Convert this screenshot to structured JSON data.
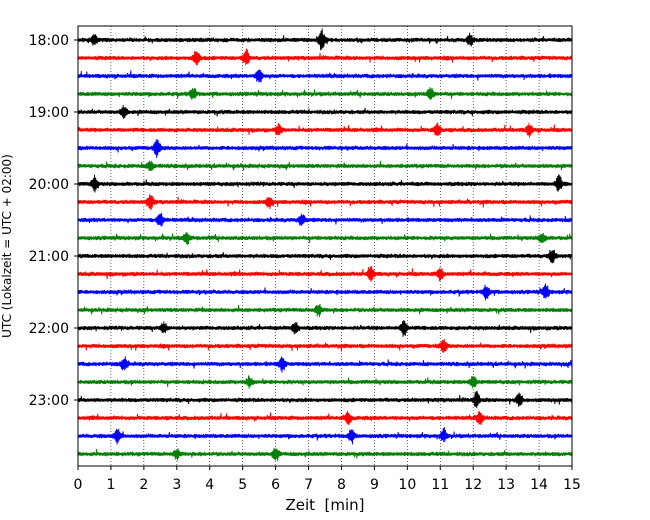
{
  "chart_data": {
    "type": "line",
    "title": "",
    "xlabel": "Zeit  [min]",
    "ylabel": "UTC (Lokalzeit = UTC + 02:00)",
    "xlim": [
      0,
      15
    ],
    "x_ticks": [
      0,
      1,
      2,
      3,
      4,
      5,
      6,
      7,
      8,
      9,
      10,
      11,
      12,
      13,
      14,
      15
    ],
    "x_grid": "dotted vertical lines at each minute",
    "y_ticks": [
      "18:00",
      "19:00",
      "20:00",
      "21:00",
      "22:00",
      "23:00"
    ],
    "trace_interval_min": 15,
    "trace_colors": [
      "#000000",
      "#ff0000",
      "#0000ff",
      "#008000"
    ],
    "traces": [
      {
        "start_utc": "18:00",
        "color": "#000000",
        "events": [
          [
            0.5,
            5
          ],
          [
            7.4,
            10
          ],
          [
            11.9,
            6
          ]
        ]
      },
      {
        "start_utc": "18:15",
        "color": "#ff0000",
        "events": [
          [
            3.6,
            8
          ],
          [
            5.1,
            8
          ]
        ]
      },
      {
        "start_utc": "18:30",
        "color": "#0000ff",
        "events": [
          [
            5.5,
            7
          ]
        ]
      },
      {
        "start_utc": "18:45",
        "color": "#008000",
        "events": [
          [
            3.5,
            6
          ],
          [
            10.7,
            6
          ]
        ]
      },
      {
        "start_utc": "19:00",
        "color": "#000000",
        "events": [
          [
            1.4,
            6
          ]
        ]
      },
      {
        "start_utc": "19:15",
        "color": "#ff0000",
        "events": [
          [
            6.1,
            5
          ],
          [
            10.9,
            6
          ],
          [
            13.7,
            6
          ]
        ]
      },
      {
        "start_utc": "19:30",
        "color": "#0000ff",
        "events": [
          [
            2.4,
            8
          ]
        ]
      },
      {
        "start_utc": "19:45",
        "color": "#008000",
        "events": [
          [
            2.2,
            5
          ]
        ]
      },
      {
        "start_utc": "20:00",
        "color": "#000000",
        "events": [
          [
            0.5,
            7
          ],
          [
            14.6,
            8
          ]
        ]
      },
      {
        "start_utc": "20:15",
        "color": "#ff0000",
        "events": [
          [
            2.2,
            7
          ],
          [
            5.8,
            5
          ]
        ]
      },
      {
        "start_utc": "20:30",
        "color": "#0000ff",
        "events": [
          [
            2.5,
            7
          ],
          [
            6.8,
            6
          ]
        ]
      },
      {
        "start_utc": "20:45",
        "color": "#008000",
        "events": [
          [
            3.3,
            6
          ],
          [
            14.1,
            5
          ]
        ]
      },
      {
        "start_utc": "21:00",
        "color": "#000000",
        "events": [
          [
            14.4,
            7
          ]
        ]
      },
      {
        "start_utc": "21:15",
        "color": "#ff0000",
        "events": [
          [
            8.9,
            7
          ],
          [
            11.0,
            6
          ]
        ]
      },
      {
        "start_utc": "21:30",
        "color": "#0000ff",
        "events": [
          [
            12.4,
            7
          ],
          [
            14.2,
            7
          ]
        ]
      },
      {
        "start_utc": "21:45",
        "color": "#008000",
        "events": [
          [
            7.3,
            6
          ]
        ]
      },
      {
        "start_utc": "22:00",
        "color": "#000000",
        "events": [
          [
            2.6,
            5
          ],
          [
            6.6,
            6
          ],
          [
            9.9,
            8
          ]
        ]
      },
      {
        "start_utc": "22:15",
        "color": "#ff0000",
        "events": [
          [
            11.1,
            6
          ]
        ]
      },
      {
        "start_utc": "22:30",
        "color": "#0000ff",
        "events": [
          [
            1.4,
            7
          ],
          [
            6.2,
            7
          ]
        ]
      },
      {
        "start_utc": "22:45",
        "color": "#008000",
        "events": [
          [
            5.2,
            5
          ],
          [
            12.0,
            6
          ]
        ]
      },
      {
        "start_utc": "23:00",
        "color": "#000000",
        "events": [
          [
            12.1,
            7
          ],
          [
            13.4,
            6
          ]
        ]
      },
      {
        "start_utc": "23:15",
        "color": "#ff0000",
        "events": [
          [
            8.2,
            6
          ],
          [
            12.2,
            6
          ]
        ]
      },
      {
        "start_utc": "23:30",
        "color": "#0000ff",
        "events": [
          [
            1.2,
            7
          ],
          [
            8.3,
            6
          ],
          [
            11.1,
            6
          ]
        ]
      },
      {
        "start_utc": "23:45",
        "color": "#008000",
        "events": [
          [
            3.0,
            5
          ],
          [
            6.0,
            6
          ]
        ]
      }
    ]
  }
}
